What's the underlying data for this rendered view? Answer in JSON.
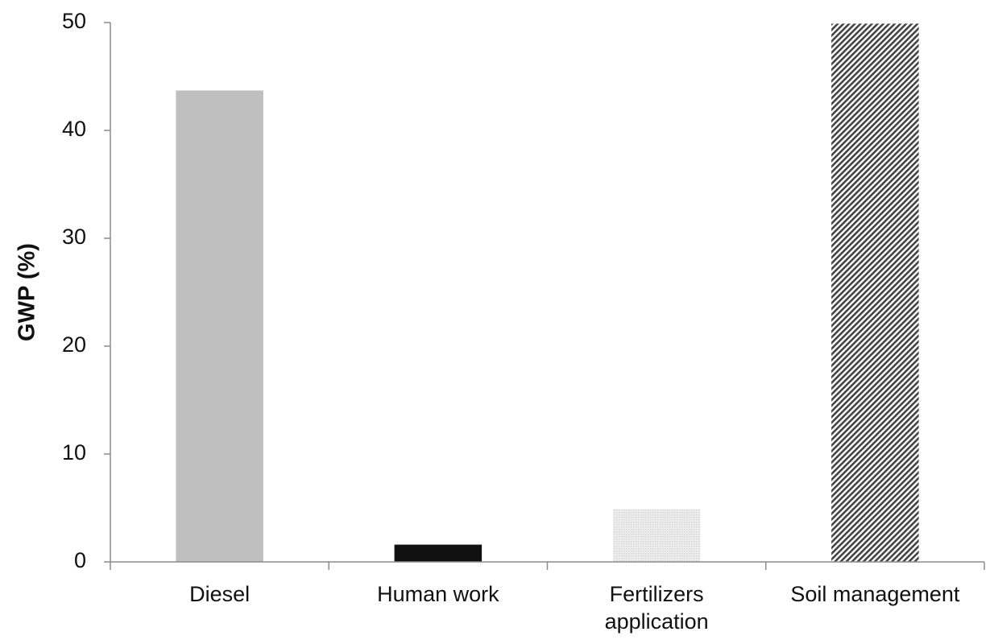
{
  "chart_data": {
    "type": "bar",
    "ylabel": "GWP (%)",
    "categories": [
      "Diesel",
      "Human work",
      "Fertilizers\napplication",
      "Soil management"
    ],
    "values": [
      43.7,
      1.6,
      4.9,
      49.9
    ],
    "colors": [
      "#bfbfbf",
      "#111111",
      "#d4d4d4",
      "#444444"
    ],
    "fills": [
      "solid",
      "solid",
      "dotted",
      "hatched"
    ],
    "ylim": [
      0,
      50
    ],
    "yticks": [
      0,
      10,
      20,
      30,
      40,
      50
    ],
    "grid": false
  }
}
